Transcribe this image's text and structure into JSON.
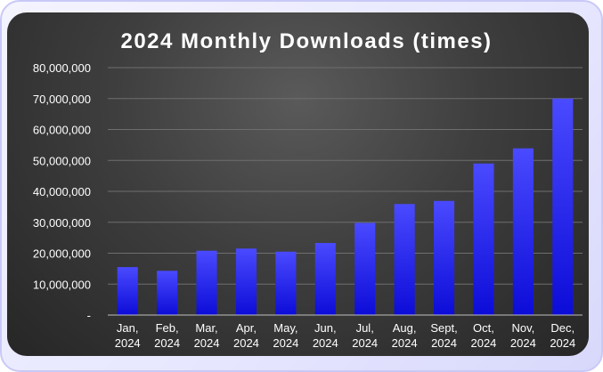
{
  "chart_data": {
    "type": "bar",
    "title": "2024 Monthly Downloads (times)",
    "xlabel": "",
    "ylabel": "",
    "categories": [
      [
        "Jan,",
        "2024"
      ],
      [
        "Feb,",
        "2024"
      ],
      [
        "Mar,",
        "2024"
      ],
      [
        "Apr,",
        "2024"
      ],
      [
        "May,",
        "2024"
      ],
      [
        "Jun,",
        "2024"
      ],
      [
        "Jul,",
        "2024"
      ],
      [
        "Aug,",
        "2024"
      ],
      [
        "Sept,",
        "2024"
      ],
      [
        "Oct,",
        "2024"
      ],
      [
        "Nov,",
        "2024"
      ],
      [
        "Dec,",
        "2024"
      ]
    ],
    "values": [
      15500000,
      14300000,
      20800000,
      21500000,
      20500000,
      23300000,
      29800000,
      35900000,
      36900000,
      49000000,
      53900000,
      70000000
    ],
    "ylim": [
      0,
      80000000
    ],
    "yticks": [
      0,
      10000000,
      20000000,
      30000000,
      40000000,
      50000000,
      60000000,
      70000000,
      80000000
    ],
    "ytick_labels": [
      "-",
      "10,000,000",
      "20,000,000",
      "30,000,000",
      "40,000,000",
      "50,000,000",
      "60,000,000",
      "70,000,000",
      "80,000,000"
    ],
    "grid": true,
    "legend": "none",
    "colors": {
      "bar_top": "#4a4aff",
      "bar_bottom": "#0c0cd8",
      "grid": "#6e6e6e",
      "axis": "#bfbfbf",
      "text": "#ffffff"
    }
  }
}
